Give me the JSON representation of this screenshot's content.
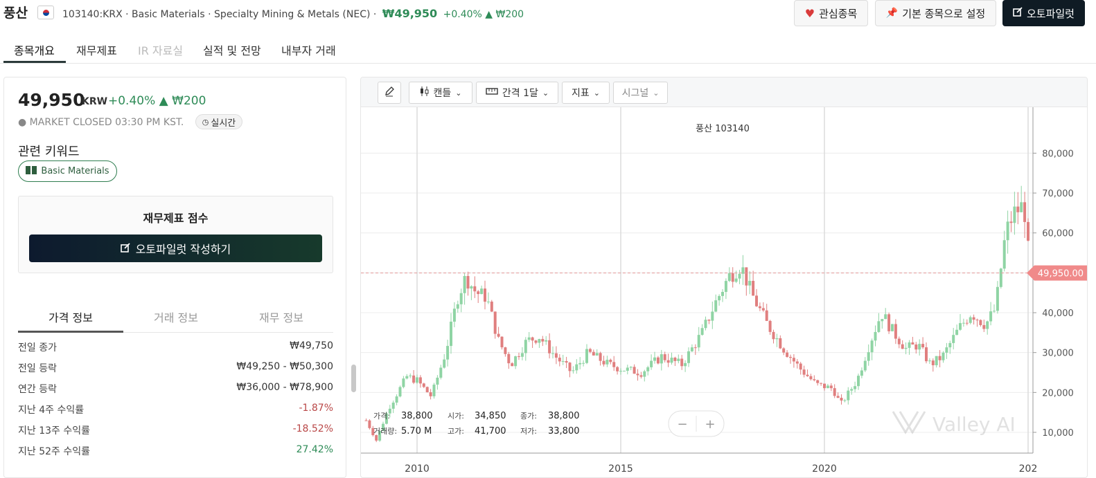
{
  "header": {
    "stock_name": "풍산",
    "ticker_info": "103140:KRX · Basic Materials · Specialty Mining & Metals (NEC) ·",
    "price": "₩49,950",
    "change": "+0.40% ▲ ₩200",
    "watch_label": "관심종목",
    "default_label": "기본 종목으로 설정",
    "autopilot_label": "오토파일럿"
  },
  "tabs": [
    "종목개요",
    "재무제표",
    "IR 자료실",
    "실적 및 전망",
    "내부자 거래"
  ],
  "summary": {
    "price": "49,950",
    "currency": "KRW",
    "change": "+0.40% ▲ ₩200",
    "market_status": "● MARKET CLOSED  03:30 PM KST.",
    "realtime": "실시간",
    "keywords_title": "관련 키워드",
    "keyword": "Basic Materials",
    "score_title": "재무제표 점수",
    "write_button": "오토파일럿 작성하기"
  },
  "info_tabs": [
    "가격 정보",
    "거래 정보",
    "재무 정보"
  ],
  "info_rows": [
    {
      "k": "전일 종가",
      "v": "₩49,750",
      "tone": "neutral"
    },
    {
      "k": "전일 등락",
      "v": "₩49,250 - ₩50,300",
      "tone": "neutral"
    },
    {
      "k": "연간 등락",
      "v": "₩36,000 - ₩78,900",
      "tone": "neutral"
    },
    {
      "k": "지난 4주 수익률",
      "v": "-1.87%",
      "tone": "neg"
    },
    {
      "k": "지난 13주 수익률",
      "v": "-18.52%",
      "tone": "neg"
    },
    {
      "k": "지난 52주 수익률",
      "v": "27.42%",
      "tone": "pos"
    }
  ],
  "toolbar": {
    "candle": "캔들",
    "interval": "간격 1달",
    "indicator": "지표",
    "signal": "시그널"
  },
  "chart_data": {
    "type": "candlestick",
    "title": "풍산  103140",
    "current_price_label": "49,950.00",
    "y_ticks": [
      10000,
      20000,
      30000,
      40000,
      50000,
      60000,
      70000,
      80000
    ],
    "y_tick_labels": [
      "10,000",
      "20,000",
      "30,000",
      "40,000",
      "50,000",
      "60,000",
      "70,000",
      "80,000"
    ],
    "x_ticks": [
      "2010",
      "2015",
      "2020",
      "202"
    ],
    "ylim": [
      0,
      83000
    ],
    "current_price": 49950,
    "ohlc_legend": {
      "close_label": "가격:",
      "close": "38,800",
      "open_label": "시가:",
      "open": "34,850",
      "last_label": "종가:",
      "last": "38,800",
      "volume_label": "거래량:",
      "volume": "5.70 M",
      "high_label": "고가:",
      "high": "41,700",
      "low_label": "저가:",
      "low": "33,800"
    },
    "watermark": "Valley AI",
    "anchor_points": [
      [
        2008.75,
        13000
      ],
      [
        2009.0,
        8000
      ],
      [
        2009.3,
        16000
      ],
      [
        2009.75,
        24000
      ],
      [
        2010.0,
        23000
      ],
      [
        2010.35,
        19000
      ],
      [
        2010.7,
        30000
      ],
      [
        2011.0,
        44000
      ],
      [
        2011.2,
        49000
      ],
      [
        2011.45,
        45000
      ],
      [
        2011.7,
        44000
      ],
      [
        2012.0,
        33000
      ],
      [
        2012.3,
        27000
      ],
      [
        2012.7,
        33000
      ],
      [
        2013.0,
        34000
      ],
      [
        2013.4,
        29000
      ],
      [
        2013.8,
        25000
      ],
      [
        2014.2,
        30000
      ],
      [
        2014.7,
        27000
      ],
      [
        2015.0,
        26000
      ],
      [
        2015.5,
        25000
      ],
      [
        2016.0,
        29000
      ],
      [
        2016.5,
        27000
      ],
      [
        2017.0,
        35000
      ],
      [
        2017.3,
        42000
      ],
      [
        2017.65,
        49000
      ],
      [
        2017.95,
        52000
      ],
      [
        2018.2,
        45000
      ],
      [
        2018.6,
        37000
      ],
      [
        2019.0,
        31000
      ],
      [
        2019.4,
        26000
      ],
      [
        2019.8,
        22000
      ],
      [
        2020.2,
        21000
      ],
      [
        2020.4,
        17000
      ],
      [
        2020.8,
        23000
      ],
      [
        2021.1,
        32000
      ],
      [
        2021.4,
        40000
      ],
      [
        2021.7,
        35000
      ],
      [
        2022.0,
        31000
      ],
      [
        2022.3,
        32000
      ],
      [
        2022.6,
        27000
      ],
      [
        2022.9,
        29000
      ],
      [
        2023.3,
        36000
      ],
      [
        2023.6,
        40000
      ],
      [
        2023.95,
        37000
      ],
      [
        2024.2,
        41000
      ],
      [
        2024.45,
        60000
      ],
      [
        2024.65,
        65000
      ],
      [
        2024.9,
        67000
      ],
      [
        2025.05,
        49950
      ]
    ]
  }
}
